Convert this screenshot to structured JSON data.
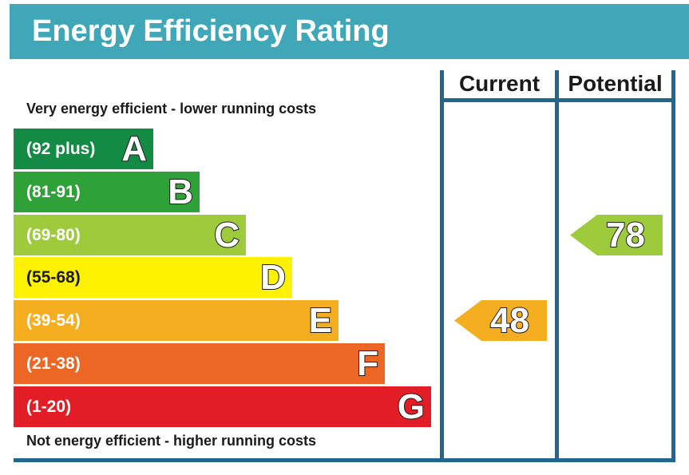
{
  "title": "Energy Efficiency Rating",
  "columns": {
    "current": "Current",
    "potential": "Potential"
  },
  "captions": {
    "top": "Very energy efficient - lower running costs",
    "bottom": "Not energy efficient - higher running costs"
  },
  "chart_data": {
    "type": "bar",
    "categories": [
      "A",
      "B",
      "C",
      "D",
      "E",
      "F",
      "G"
    ],
    "ranges": [
      "(92 plus)",
      "(81-91)",
      "(69-80)",
      "(55-68)",
      "(39-54)",
      "(21-38)",
      "(1-20)"
    ],
    "colors": [
      "#138b45",
      "#2ea239",
      "#9dcb3c",
      "#fff200",
      "#f6ae21",
      "#ec6624",
      "#e31d25"
    ],
    "current": {
      "value": 48,
      "band": "E",
      "color": "#f6ae21"
    },
    "potential": {
      "value": 78,
      "band": "C",
      "color": "#9dcb3c"
    }
  }
}
